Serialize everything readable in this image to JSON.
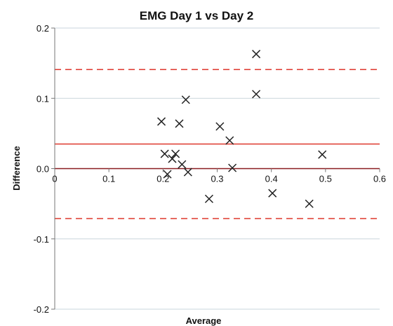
{
  "chart_data": {
    "type": "scatter",
    "title": "EMG Day 1 vs Day 2",
    "xlabel": "Average",
    "ylabel": "Difference",
    "xlim": [
      0,
      0.6
    ],
    "ylim": [
      -0.2,
      0.2
    ],
    "x_ticks": [
      0,
      0.1,
      0.2,
      0.3,
      0.4,
      0.5,
      0.6
    ],
    "x_tick_labels": [
      "0",
      "0.1",
      "0.2",
      "0.3",
      "0.4",
      "0.5",
      "0.6"
    ],
    "y_ticks": [
      0.2,
      0.1,
      0.0,
      -0.1,
      -0.2
    ],
    "y_tick_labels": [
      "0.2",
      "0.1",
      "0.0",
      "-0.1",
      "-0.2"
    ],
    "grid": "horizontal",
    "marker": "x",
    "points": [
      {
        "x": 0.197,
        "y": 0.067
      },
      {
        "x": 0.203,
        "y": 0.021
      },
      {
        "x": 0.208,
        "y": -0.008
      },
      {
        "x": 0.217,
        "y": 0.014
      },
      {
        "x": 0.223,
        "y": 0.021
      },
      {
        "x": 0.23,
        "y": 0.064
      },
      {
        "x": 0.235,
        "y": 0.006
      },
      {
        "x": 0.242,
        "y": 0.098
      },
      {
        "x": 0.246,
        "y": -0.005
      },
      {
        "x": 0.285,
        "y": -0.043
      },
      {
        "x": 0.305,
        "y": 0.06
      },
      {
        "x": 0.323,
        "y": 0.04
      },
      {
        "x": 0.328,
        "y": 0.001
      },
      {
        "x": 0.372,
        "y": 0.163
      },
      {
        "x": 0.372,
        "y": 0.106
      },
      {
        "x": 0.402,
        "y": -0.035
      },
      {
        "x": 0.47,
        "y": -0.05
      },
      {
        "x": 0.494,
        "y": 0.02
      }
    ],
    "reference_lines": [
      {
        "y": 0.035,
        "style": "solid",
        "color": "#e0443a"
      },
      {
        "y": 0.141,
        "style": "dashed",
        "color": "#e0443a"
      },
      {
        "y": -0.071,
        "style": "dashed",
        "color": "#e0443a"
      }
    ],
    "colors": {
      "marker": "#222222",
      "zero_line": "#8a1c20",
      "grid": "#c9d6dc",
      "axis": "#777777"
    }
  }
}
